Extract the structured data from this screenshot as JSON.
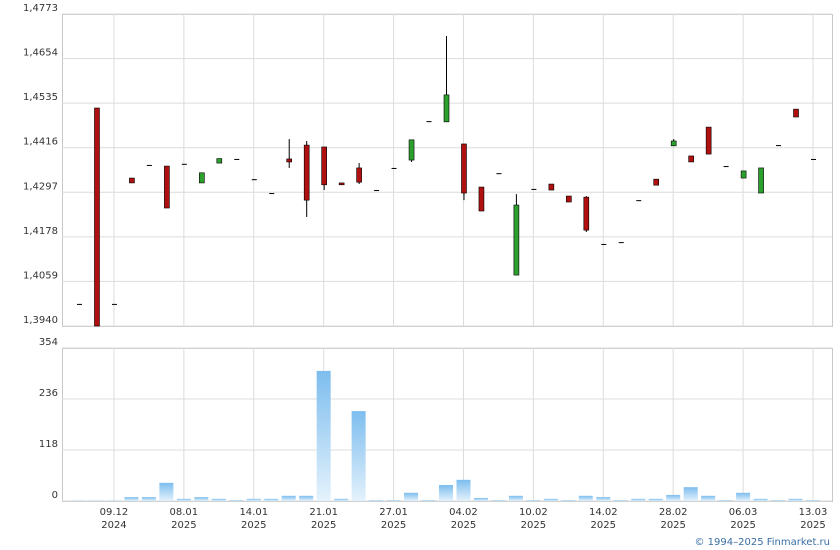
{
  "chart_data": [
    {
      "type": "candlestick",
      "open": [
        1.3999,
        1.4522,
        1.3999,
        1.4335,
        1.437,
        1.4367,
        1.4373,
        1.4322,
        1.4375,
        1.4386,
        1.4332,
        1.4295,
        1.4386,
        1.4423,
        1.4418,
        1.4322,
        1.4362,
        1.4303,
        1.4362,
        1.4383,
        1.4487,
        1.4485,
        1.4426,
        1.4311,
        1.4348,
        1.4076,
        1.4306,
        1.4319,
        1.4287,
        1.4284,
        1.4159,
        1.4164,
        1.4276,
        1.4332,
        1.4421,
        1.4394,
        1.4471,
        1.4367,
        1.4335,
        1.4295,
        1.4423,
        1.4519,
        1.4386
      ],
      "high": [
        1.3999,
        1.4522,
        1.3999,
        1.4335,
        1.437,
        1.4367,
        1.4373,
        1.4349,
        1.4387,
        1.4386,
        1.4332,
        1.4295,
        1.4439,
        1.4434,
        1.4418,
        1.4322,
        1.4375,
        1.4303,
        1.4362,
        1.4437,
        1.4487,
        1.4714,
        1.4426,
        1.4311,
        1.4348,
        1.4292,
        1.4306,
        1.4319,
        1.4287,
        1.4287,
        1.4159,
        1.4164,
        1.4276,
        1.4332,
        1.4439,
        1.4394,
        1.4471,
        1.4367,
        1.4354,
        1.4362,
        1.4423,
        1.4519,
        1.4386
      ],
      "low": [
        1.3999,
        1.394,
        1.3999,
        1.4322,
        1.437,
        1.4255,
        1.4373,
        1.4322,
        1.4375,
        1.4386,
        1.4332,
        1.4295,
        1.4362,
        1.4231,
        1.4303,
        1.4317,
        1.4319,
        1.4303,
        1.4362,
        1.4378,
        1.4487,
        1.4485,
        1.4276,
        1.4247,
        1.4348,
        1.4076,
        1.4306,
        1.4303,
        1.4271,
        1.4191,
        1.4159,
        1.4164,
        1.4276,
        1.4316,
        1.4421,
        1.4378,
        1.4399,
        1.4367,
        1.4335,
        1.4295,
        1.4423,
        1.4498,
        1.4386
      ],
      "close": [
        1.3999,
        1.394,
        1.3999,
        1.4322,
        1.437,
        1.4255,
        1.4373,
        1.4349,
        1.4387,
        1.4386,
        1.4332,
        1.4295,
        1.4378,
        1.4276,
        1.4317,
        1.4317,
        1.4324,
        1.4303,
        1.4362,
        1.4437,
        1.4487,
        1.4557,
        1.4295,
        1.4247,
        1.4348,
        1.4263,
        1.4306,
        1.4303,
        1.4271,
        1.4196,
        1.4159,
        1.4164,
        1.4276,
        1.4316,
        1.4434,
        1.4378,
        1.4399,
        1.4367,
        1.4354,
        1.4362,
        1.4423,
        1.4498,
        1.4386
      ],
      "up_color": "#2ca02c",
      "down_color": "#b01010",
      "ylim": [
        1.394,
        1.4773
      ],
      "yticks": [
        {
          "value": 1.394,
          "label": "1,3940"
        },
        {
          "value": 1.4059,
          "label": "1,4059"
        },
        {
          "value": 1.4178,
          "label": "1,4178"
        },
        {
          "value": 1.4297,
          "label": "1,4297"
        },
        {
          "value": 1.4416,
          "label": "1,4416"
        },
        {
          "value": 1.4535,
          "label": "1,4535"
        },
        {
          "value": 1.4654,
          "label": "1,4654"
        },
        {
          "value": 1.4773,
          "label": "1,4773"
        }
      ],
      "grid": true
    },
    {
      "type": "bar",
      "categories": [
        null,
        null,
        "09.12",
        null,
        null,
        null,
        "08.01",
        null,
        null,
        null,
        "14.01",
        null,
        null,
        null,
        "21.01",
        null,
        null,
        null,
        "27.01",
        null,
        null,
        null,
        "04.02",
        null,
        null,
        null,
        "10.02",
        null,
        null,
        null,
        "14.02",
        null,
        null,
        null,
        "28.02",
        null,
        null,
        null,
        "06.03",
        null,
        null,
        null,
        "13.03"
      ],
      "category_years": [
        null,
        null,
        "2024",
        null,
        null,
        null,
        "2025",
        null,
        null,
        null,
        "2025",
        null,
        null,
        null,
        "2025",
        null,
        null,
        null,
        "2025",
        null,
        null,
        null,
        "2025",
        null,
        null,
        null,
        "2025",
        null,
        null,
        null,
        "2025",
        null,
        null,
        null,
        "2025",
        null,
        null,
        null,
        "2025",
        null,
        null,
        null,
        "2025"
      ],
      "values": [
        1,
        1,
        1,
        9,
        9,
        42,
        5,
        9,
        5,
        2,
        5,
        5,
        12,
        12,
        301,
        5,
        208,
        2,
        2,
        19,
        2,
        37,
        49,
        7,
        2,
        12,
        2,
        5,
        2,
        12,
        9,
        2,
        5,
        5,
        14,
        32,
        12,
        2,
        19,
        5,
        2,
        5,
        2
      ],
      "color": "#7dbdee",
      "ylim": [
        0,
        354
      ],
      "yticks": [
        0,
        118,
        236,
        354
      ],
      "grid": true
    }
  ],
  "footer": "© 1994–2025 Finmarket.ru"
}
